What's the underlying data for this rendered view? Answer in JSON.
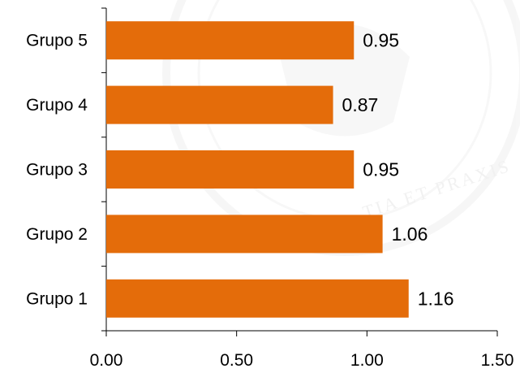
{
  "chart_data": {
    "type": "bar",
    "orientation": "horizontal",
    "categories": [
      "Grupo 1",
      "Grupo 2",
      "Grupo 3",
      "Grupo 4",
      "Grupo 5"
    ],
    "values": [
      1.16,
      1.06,
      0.95,
      0.87,
      0.95
    ],
    "value_labels": [
      "1.16",
      "1.06",
      "0.95",
      "0.87",
      "0.95"
    ],
    "xlim": [
      0,
      1.5
    ],
    "x_ticks": [
      0,
      0.5,
      1.0,
      1.5
    ],
    "x_tick_labels": [
      "0.00",
      "0.50",
      "1.00",
      "1.50"
    ],
    "title": "",
    "xlabel": "",
    "ylabel": "",
    "grid": false,
    "legend": "none",
    "bar_color": "#e46c0a"
  },
  "watermark": {
    "text": "TIA ET PRAXIS",
    "color": "#e6e6e6"
  }
}
